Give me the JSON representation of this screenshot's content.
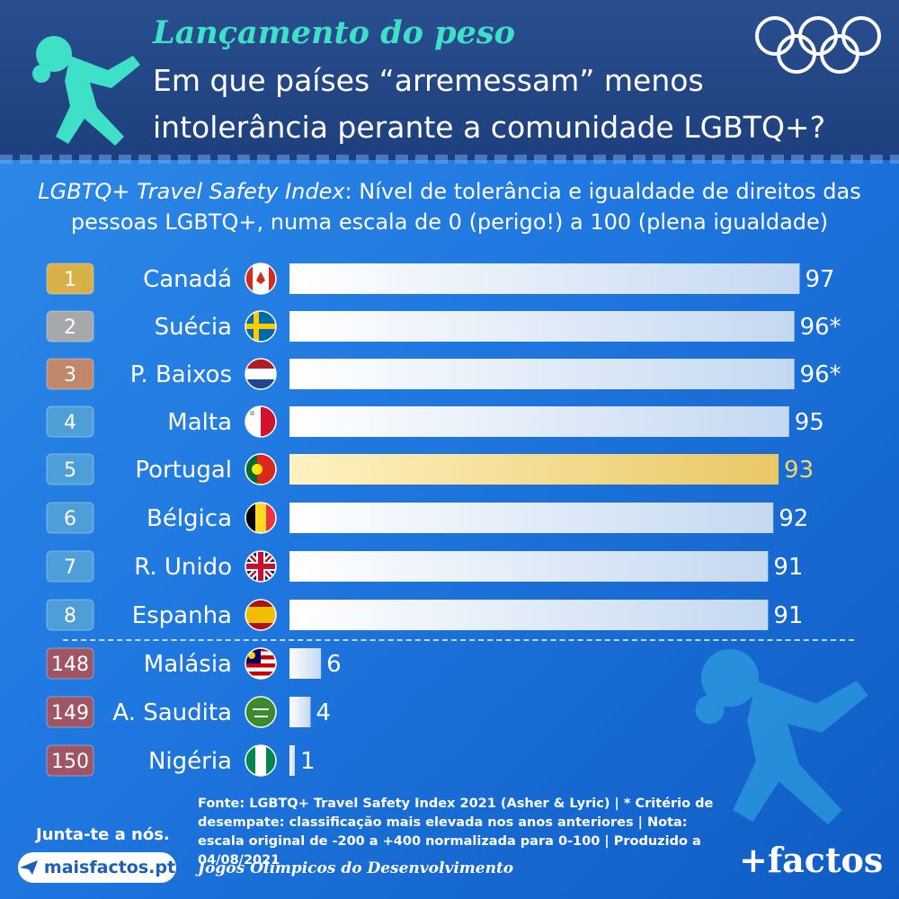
{
  "header": {
    "kicker": "Lançamento do peso",
    "headline": "Em que países “arremessam” menos intolerância perante a comunidade LGBTQ+?"
  },
  "subtitle": {
    "index_name": "LGBTQ+ Travel Safety Index",
    "text": ": Nível de tolerância e igualdade de direitos das pessoas LGBTQ+, numa escala de 0 (perigo!) a 100 (plena igualdade)"
  },
  "chart_data": {
    "type": "bar",
    "orientation": "horizontal",
    "title": "LGBTQ+ Travel Safety Index",
    "xlim": [
      0,
      100
    ],
    "categories": [
      "Canadá",
      "Suécia",
      "P. Baixos",
      "Malta",
      "Portugal",
      "Bélgica",
      "R. Unido",
      "Espanha",
      "Malásia",
      "A. Saudita",
      "Nigéria"
    ],
    "ranks": [
      "1",
      "2",
      "3",
      "4",
      "5",
      "6",
      "7",
      "8",
      "148",
      "149",
      "150"
    ],
    "values": [
      97,
      96,
      96,
      95,
      93,
      92,
      91,
      91,
      6,
      4,
      1
    ],
    "value_labels": [
      "97",
      "96*",
      "96*",
      "95",
      "93",
      "92",
      "91",
      "91",
      "6",
      "4",
      "1"
    ],
    "highlight": "Portugal",
    "colors": {
      "gold": "#d9b048",
      "silver": "#a7a8a9",
      "bronze": "#c08868",
      "top_rank": "#4e9fd8",
      "bottom_rank": "#a05565",
      "highlight_bar": "#f2d77a",
      "highlight_text": "#f6d56a"
    }
  },
  "footer": {
    "source": "Fonte: LGBTQ+ Travel Safety Index 2021 (Asher & Lyric) | * Critério de desempate: classificação mais elevada nos anos anteriores | Nota: escala original de -200 a +400 normalizada para 0-100 | Produzido a 04/08/2021",
    "join": "Junta-te a nós.",
    "site": "maisfactos.pt",
    "series": "Jogos Olímpicos do Desenvolvimento",
    "logo": "+factos"
  },
  "icons": [
    "shot-put-athlete-icon",
    "olympic-rings-icon",
    "send-arrow-icon",
    "flag-icon"
  ]
}
